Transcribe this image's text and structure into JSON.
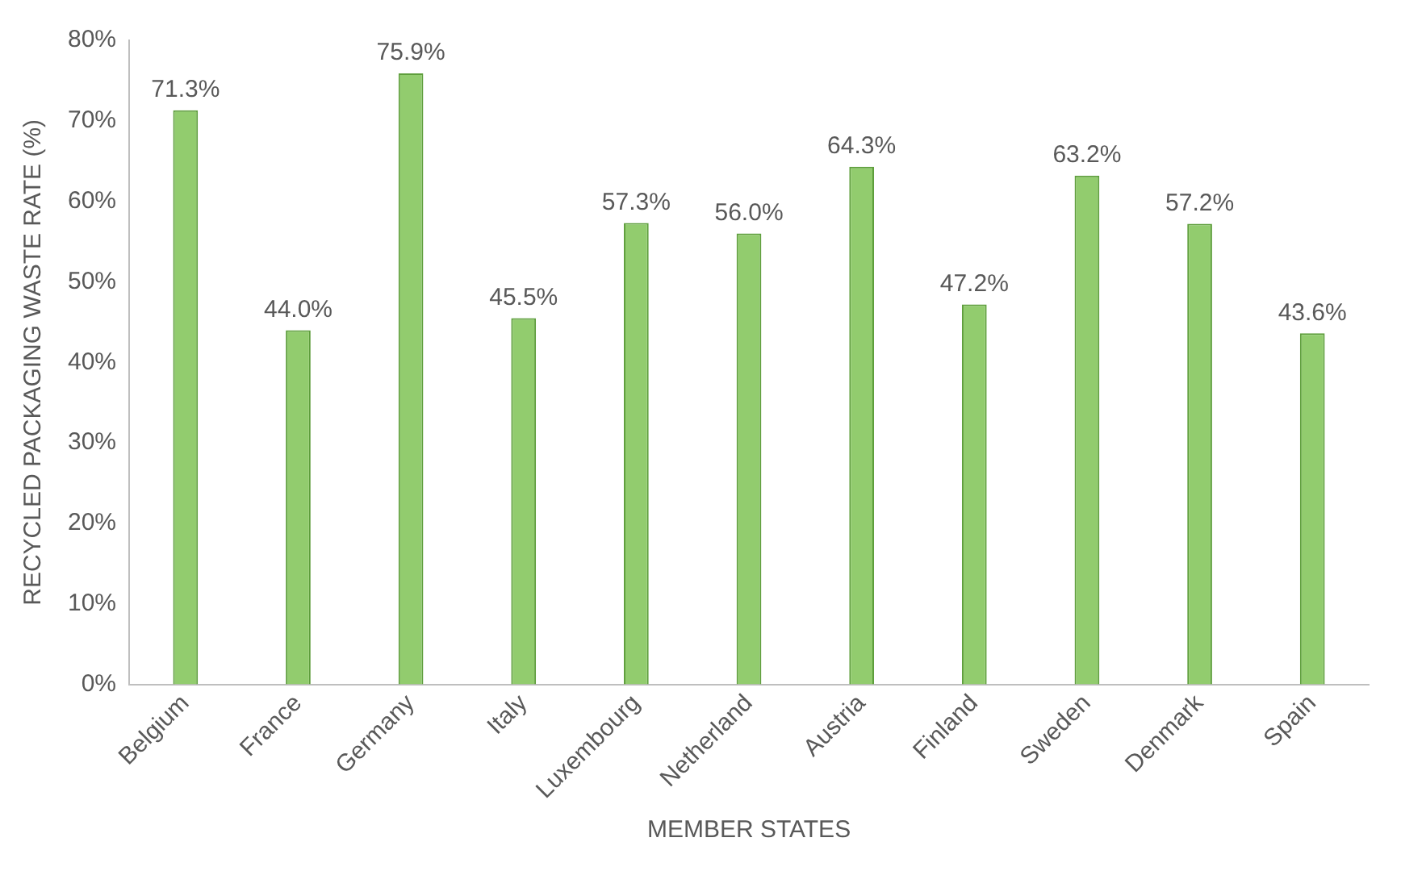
{
  "chart_data": {
    "type": "bar",
    "xlabel": "MEMBER STATES",
    "ylabel": "RECYCLED PACKAGING WASTE RATE (%)",
    "categories": [
      "Belgium",
      "France",
      "Germany",
      "Italy",
      "Luxembourg",
      "Netherland",
      "Austria",
      "Finland",
      "Sweden",
      "Denmark",
      "Spain"
    ],
    "values": [
      71.3,
      44.0,
      75.9,
      45.5,
      57.3,
      56.0,
      64.3,
      47.2,
      63.2,
      57.2,
      43.6
    ],
    "value_labels": [
      "71.3%",
      "44.0%",
      "75.9%",
      "45.5%",
      "57.3%",
      "56.0%",
      "64.3%",
      "47.2%",
      "63.2%",
      "57.2%",
      "43.6%"
    ],
    "color": "#92cc6e",
    "ylim": [
      0,
      80
    ],
    "yticks": [
      {
        "value": 0,
        "label": "0%"
      },
      {
        "value": 10,
        "label": "10%"
      },
      {
        "value": 20,
        "label": "20%"
      },
      {
        "value": 30,
        "label": "30%"
      },
      {
        "value": 40,
        "label": "40%"
      },
      {
        "value": 50,
        "label": "50%"
      },
      {
        "value": 60,
        "label": "60%"
      },
      {
        "value": 70,
        "label": "70%"
      },
      {
        "value": 80,
        "label": "80%"
      }
    ],
    "grid": false,
    "legend": false
  }
}
